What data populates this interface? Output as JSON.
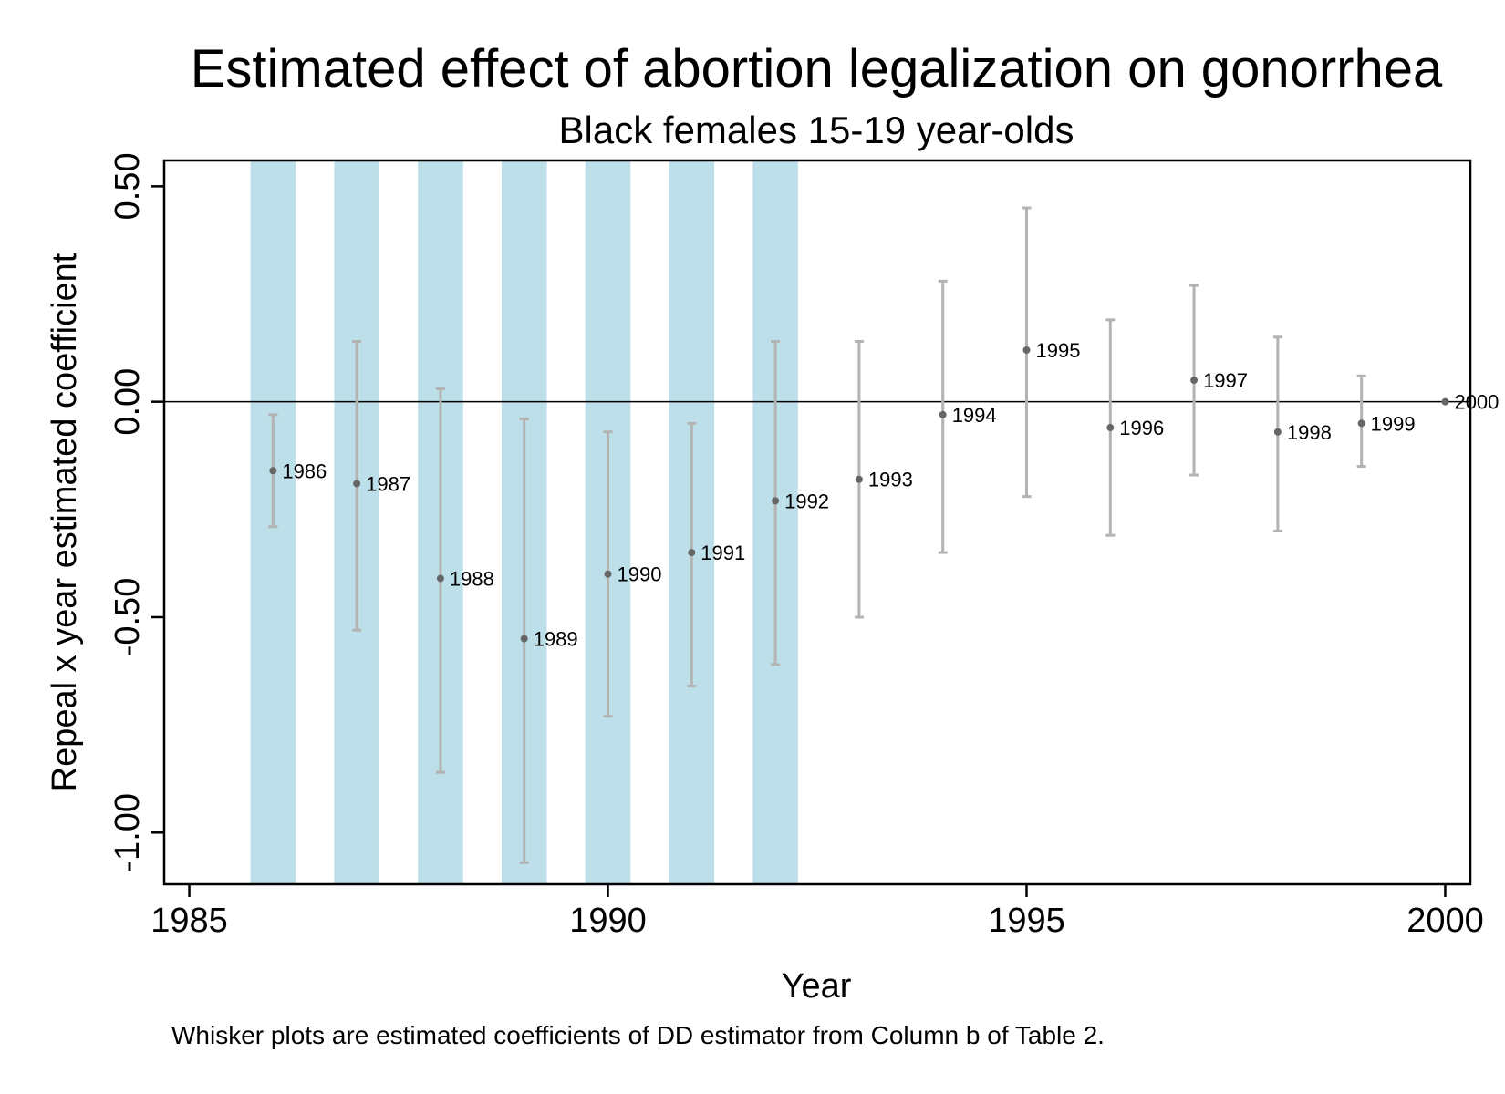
{
  "chart_data": {
    "type": "scatter",
    "title": "Estimated effect of abortion legalization on gonorrhea",
    "subtitle": "Black females 15-19 year-olds",
    "xlabel": "Year",
    "ylabel": "Repeal x year estimated coefficient",
    "note": "Whisker plots are estimated coefficients of DD estimator from Column b of Table 2.",
    "xlim": [
      1984.7,
      2000.3
    ],
    "ylim": [
      -1.12,
      0.56
    ],
    "xticks": [
      1985,
      1990,
      1995,
      2000
    ],
    "xtick_labels": [
      "1985",
      "1990",
      "1995",
      "2000"
    ],
    "yticks": [
      0.5,
      0.0,
      -0.5,
      -1.0
    ],
    "ytick_labels": [
      "0.50",
      "0.00",
      "-0.50",
      "-1.00"
    ],
    "reference_line_y": 0,
    "shaded_years": [
      1986,
      1987,
      1988,
      1989,
      1990,
      1991,
      1992
    ],
    "shade_color": "#bcdfe9",
    "whisker_color": "#b3b3b3",
    "point_color": "#666666",
    "grid": false,
    "points": [
      {
        "year": 1986,
        "label": "1986",
        "coef": -0.16,
        "lo": -0.29,
        "hi": -0.03
      },
      {
        "year": 1987,
        "label": "1987",
        "coef": -0.19,
        "lo": -0.53,
        "hi": 0.14
      },
      {
        "year": 1988,
        "label": "1988",
        "coef": -0.41,
        "lo": -0.86,
        "hi": 0.03
      },
      {
        "year": 1989,
        "label": "1989",
        "coef": -0.55,
        "lo": -1.07,
        "hi": -0.04
      },
      {
        "year": 1990,
        "label": "1990",
        "coef": -0.4,
        "lo": -0.73,
        "hi": -0.07
      },
      {
        "year": 1991,
        "label": "1991",
        "coef": -0.35,
        "lo": -0.66,
        "hi": -0.05
      },
      {
        "year": 1992,
        "label": "1992",
        "coef": -0.23,
        "lo": -0.61,
        "hi": 0.14
      },
      {
        "year": 1993,
        "label": "1993",
        "coef": -0.18,
        "lo": -0.5,
        "hi": 0.14
      },
      {
        "year": 1994,
        "label": "1994",
        "coef": -0.03,
        "lo": -0.35,
        "hi": 0.28
      },
      {
        "year": 1995,
        "label": "1995",
        "coef": 0.12,
        "lo": -0.22,
        "hi": 0.45
      },
      {
        "year": 1996,
        "label": "1996",
        "coef": -0.06,
        "lo": -0.31,
        "hi": 0.19
      },
      {
        "year": 1997,
        "label": "1997",
        "coef": 0.05,
        "lo": -0.17,
        "hi": 0.27
      },
      {
        "year": 1998,
        "label": "1998",
        "coef": -0.07,
        "lo": -0.3,
        "hi": 0.15
      },
      {
        "year": 1999,
        "label": "1999",
        "coef": -0.05,
        "lo": -0.15,
        "hi": 0.06
      },
      {
        "year": 2000,
        "label": "2000",
        "coef": 0.0
      }
    ]
  }
}
